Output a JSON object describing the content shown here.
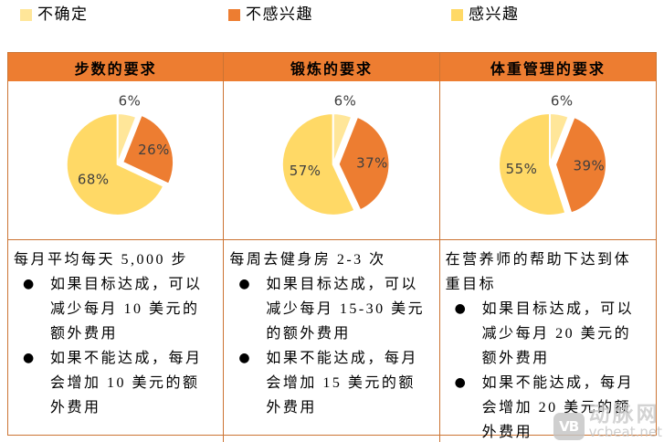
{
  "legend": {
    "items": [
      {
        "label": "不确定",
        "color": "#FFE699"
      },
      {
        "label": "不感兴趣",
        "color": "#ED7D31"
      },
      {
        "label": "感兴趣",
        "color": "#FFD966"
      }
    ]
  },
  "columns": [
    {
      "header": "步数的要求",
      "intro": "每月平均每天 5,000 步",
      "bullets": [
        "如果目标达成，可以减少每月 10 美元的额外费用",
        "如果不能达成，每月会增加 10 美元的额外费用"
      ]
    },
    {
      "header": "锻炼的要求",
      "intro": "每周去健身房 2-3 次",
      "bullets": [
        "如果目标达成，可以减少每月 15-30 美元的额外费用",
        "如果不能达成，每月会增加 15 美元的额外费用"
      ]
    },
    {
      "header": "体重管理的要求",
      "intro": "在营养师的帮助下达到体重目标",
      "bullets": [
        "如果目标达成，可以减少每月 20 美元的额外费用",
        "如果不能达成，每月会增加 20 美元的额外费用"
      ]
    }
  ],
  "chart_data": [
    {
      "type": "pie",
      "title": "步数的要求",
      "categories": [
        "不确定",
        "不感兴趣",
        "感兴趣"
      ],
      "values": [
        6,
        26,
        68
      ],
      "labels": [
        "6%",
        "26%",
        "68%"
      ],
      "colors": [
        "#FFE699",
        "#ED7D31",
        "#FFD966"
      ],
      "start_angle": 0,
      "direction": "clockwise",
      "exploded_index": 1,
      "legend_position": "top"
    },
    {
      "type": "pie",
      "title": "锻炼的要求",
      "categories": [
        "不确定",
        "不感兴趣",
        "感兴趣"
      ],
      "values": [
        6,
        37,
        57
      ],
      "labels": [
        "6%",
        "37%",
        "57%"
      ],
      "colors": [
        "#FFE699",
        "#ED7D31",
        "#FFD966"
      ],
      "start_angle": 0,
      "direction": "clockwise",
      "exploded_index": 1,
      "legend_position": "top"
    },
    {
      "type": "pie",
      "title": "体重管理的要求",
      "categories": [
        "不确定",
        "不感兴趣",
        "感兴趣"
      ],
      "values": [
        6,
        39,
        55
      ],
      "labels": [
        "6%",
        "39%",
        "55%"
      ],
      "colors": [
        "#FFE699",
        "#ED7D31",
        "#FFD966"
      ],
      "start_angle": 0,
      "direction": "clockwise",
      "exploded_index": 1,
      "legend_position": "top"
    }
  ],
  "colors": {
    "header_bg": "#ED7D31",
    "table_border": "#CC7433",
    "pie_label_text": "#3F3F3F",
    "body_text": "#000000"
  },
  "watermark": {
    "brand": "动脉网",
    "site": "vcbeat.net",
    "logo_text": "VB"
  }
}
